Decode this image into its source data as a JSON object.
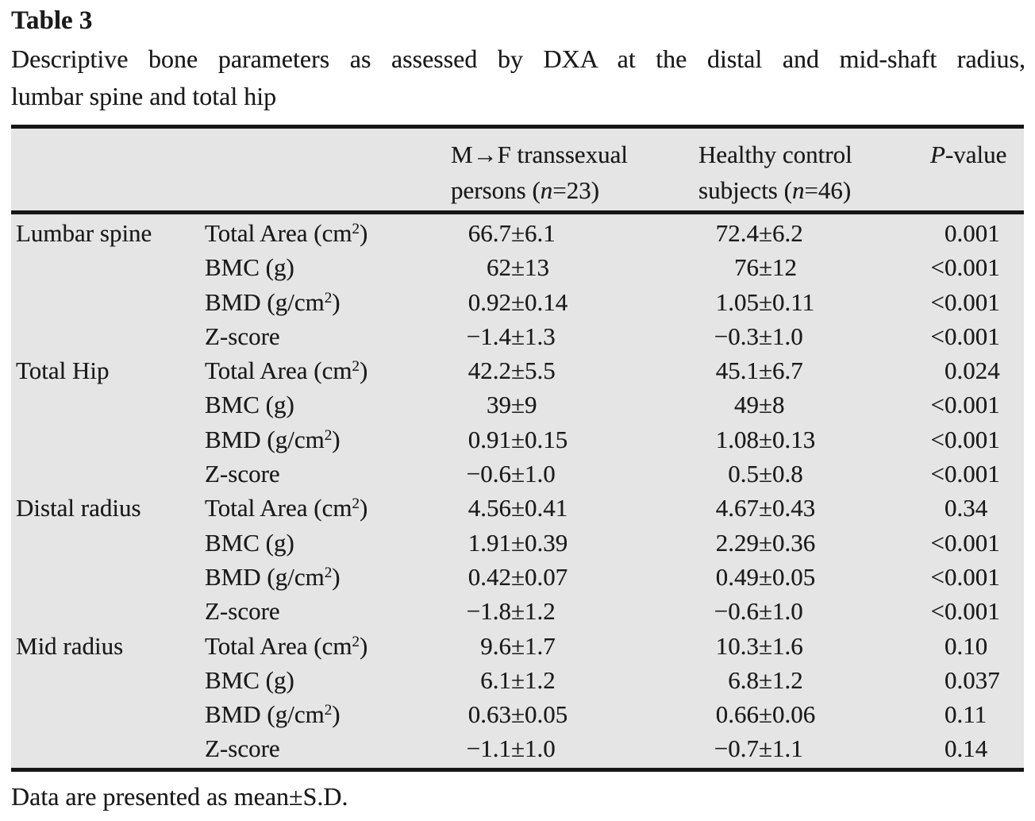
{
  "title": "Table 3",
  "caption": {
    "line1": "Descriptive bone parameters as assessed by DXA at the distal and mid-shaft radius,",
    "line2": "lumbar spine and total hip"
  },
  "header": {
    "mf_line1": "M→F transsexual",
    "mf_line2_pre": "persons (",
    "mf_line2_n": "n",
    "mf_line2_post": "=23)",
    "hc_line1": "Healthy control",
    "hc_line2_pre": "subjects (",
    "hc_line2_n": "n",
    "hc_line2_post": "=46)",
    "p_italic": "P",
    "p_rest": "-value"
  },
  "rows": [
    {
      "group": "Lumbar spine",
      "param_pre": "Total Area (cm",
      "param_sup": "2",
      "param_post": ")",
      "mf": "66.7±6.1",
      "hc": "72.4±6.2",
      "p": "0.001"
    },
    {
      "group": "",
      "param_pre": "BMC (g)",
      "param_sup": "",
      "param_post": "",
      "mf": "62±13",
      "hc": "76±12",
      "p": "<0.001"
    },
    {
      "group": "",
      "param_pre": "BMD (g/cm",
      "param_sup": "2",
      "param_post": ")",
      "mf": "0.92±0.14",
      "hc": "1.05±0.11",
      "p": "<0.001"
    },
    {
      "group": "",
      "param_pre": "Z-score",
      "param_sup": "",
      "param_post": "",
      "mf": "−1.4±1.3",
      "hc": "−0.3±1.0",
      "p": "<0.001"
    },
    {
      "group": "Total Hip",
      "param_pre": "Total Area (cm",
      "param_sup": "2",
      "param_post": ")",
      "mf": "42.2±5.5",
      "hc": "45.1±6.7",
      "p": "0.024"
    },
    {
      "group": "",
      "param_pre": "BMC (g)",
      "param_sup": "",
      "param_post": "",
      "mf": "39±9",
      "hc": "49±8",
      "p": "<0.001"
    },
    {
      "group": "",
      "param_pre": "BMD (g/cm",
      "param_sup": "2",
      "param_post": ")",
      "mf": "0.91±0.15",
      "hc": "1.08±0.13",
      "p": "<0.001"
    },
    {
      "group": "",
      "param_pre": "Z-score",
      "param_sup": "",
      "param_post": "",
      "mf": "−0.6±1.0",
      "hc": "0.5±0.8",
      "p": "<0.001"
    },
    {
      "group": "Distal radius",
      "param_pre": "Total Area (cm",
      "param_sup": "2",
      "param_post": ")",
      "mf": "4.56±0.41",
      "hc": "4.67±0.43",
      "p": "0.34"
    },
    {
      "group": "",
      "param_pre": "BMC (g)",
      "param_sup": "",
      "param_post": "",
      "mf": "1.91±0.39",
      "hc": "2.29±0.36",
      "p": "<0.001"
    },
    {
      "group": "",
      "param_pre": "BMD (g/cm",
      "param_sup": "2",
      "param_post": ")",
      "mf": "0.42±0.07",
      "hc": "0.49±0.05",
      "p": "<0.001"
    },
    {
      "group": "",
      "param_pre": "Z-score",
      "param_sup": "",
      "param_post": "",
      "mf": "−1.8±1.2",
      "hc": "−0.6±1.0",
      "p": "<0.001"
    },
    {
      "group": "Mid radius",
      "param_pre": "Total Area (cm",
      "param_sup": "2",
      "param_post": ")",
      "mf": "9.6±1.7",
      "hc": "10.3±1.6",
      "p": "0.10"
    },
    {
      "group": "",
      "param_pre": "BMC (g)",
      "param_sup": "",
      "param_post": "",
      "mf": "6.1±1.2",
      "hc": "6.8±1.2",
      "p": "0.037"
    },
    {
      "group": "",
      "param_pre": "BMD (g/cm",
      "param_sup": "2",
      "param_post": ")",
      "mf": "0.63±0.05",
      "hc": "0.66±0.06",
      "p": "0.11"
    },
    {
      "group": "",
      "param_pre": "Z-score",
      "param_sup": "",
      "param_post": "",
      "mf": "−1.1±1.0",
      "hc": "−0.7±1.1",
      "p": "0.14"
    }
  ],
  "footnote": "Data are presented as mean±S.D.",
  "colors": {
    "page_bg": "#ffffff",
    "table_bg": "#e5e5e6",
    "rule": "#161616",
    "text": "#1b1b1b"
  }
}
